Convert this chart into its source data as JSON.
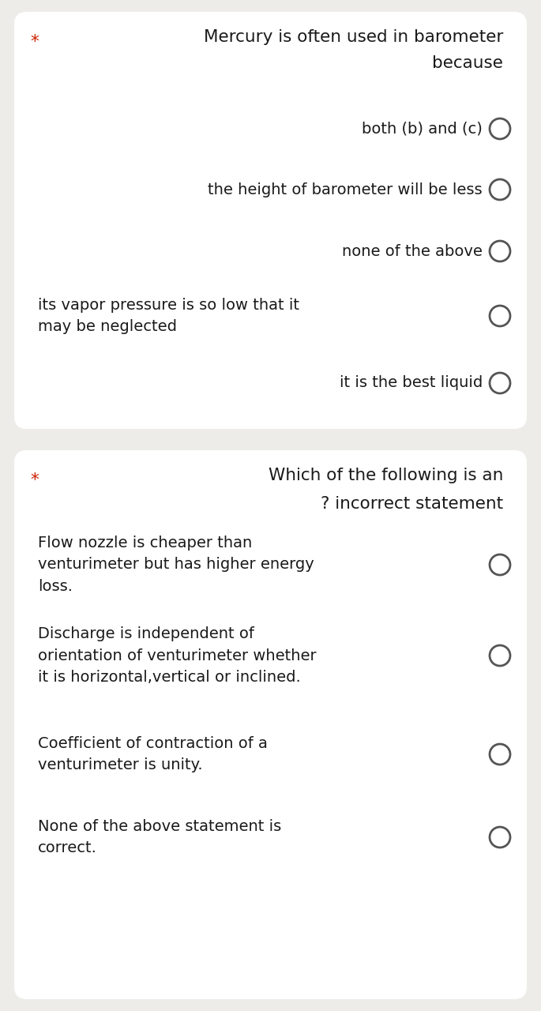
{
  "bg_color": "#eeece8",
  "card_color": "#ffffff",
  "text_color": "#1a1a1a",
  "star_color": "#cc2200",
  "circle_color": "#555555",
  "question1": {
    "star": "*",
    "title_line1": "Mercury is often used in barometer",
    "title_line2": "because",
    "options": [
      {
        "text": "both (b) and (c)",
        "align": "right",
        "lines": 1
      },
      {
        "text": "the height of barometer will be less",
        "align": "right",
        "lines": 1
      },
      {
        "text": "none of the above",
        "align": "right",
        "lines": 1
      },
      {
        "text": "its vapor pressure is so low that it\nmay be neglected",
        "align": "left",
        "lines": 2
      },
      {
        "text": "it is the best liquid",
        "align": "right",
        "lines": 1
      }
    ]
  },
  "question2": {
    "star": "*",
    "title_line1": "Which of the following is an",
    "title_line2": "? incorrect statement",
    "options": [
      {
        "text": "Flow nozzle is cheaper than\nventurimeter but has higher energy\nloss.",
        "align": "left",
        "lines": 3
      },
      {
        "text": "Discharge is independent of\norientation of venturimeter whether\nit is horizontal,vertical or inclined.",
        "align": "left",
        "lines": 3
      },
      {
        "text": "Coefficient of contraction of a\nventurimeter is unity.",
        "align": "left",
        "lines": 2
      },
      {
        "text": "None of the above statement is\ncorrect.",
        "align": "left",
        "lines": 2
      }
    ]
  },
  "font_size_title": 15.5,
  "font_size_option": 14.0,
  "figsize": [
    6.85,
    12.8
  ],
  "dpi": 100
}
